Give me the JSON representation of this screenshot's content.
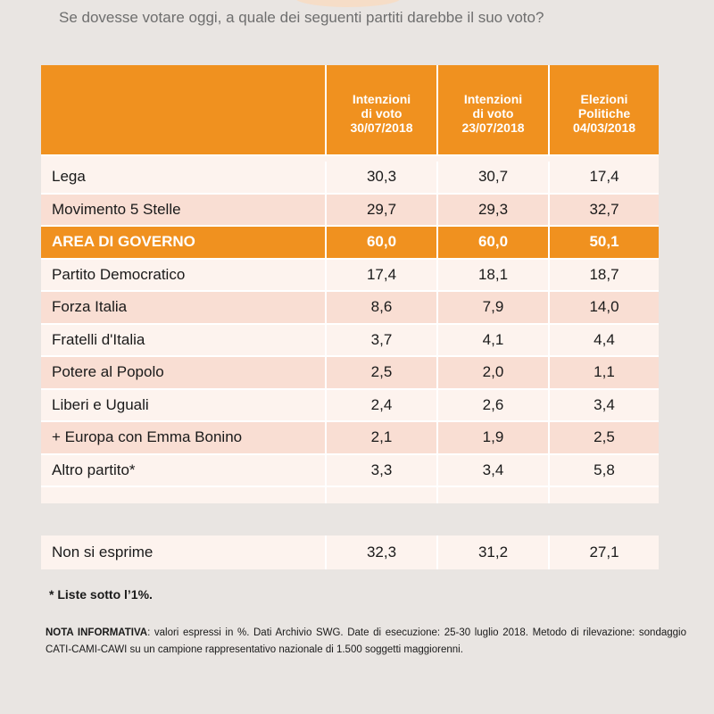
{
  "question": "Se dovesse votare oggi, a quale dei seguenti partiti darebbe il suo voto?",
  "colors": {
    "accent": "#f0911f",
    "row_light": "#fdf3ee",
    "row_dark": "#f9ded3"
  },
  "chart_data": {
    "type": "table",
    "columns": [
      {
        "line1": "Intenzioni",
        "line2": "di voto",
        "line3": "30/07/2018"
      },
      {
        "line1": "Intenzioni",
        "line2": "di voto",
        "line3": "23/07/2018"
      },
      {
        "line1": "Elezioni",
        "line2": "Politiche",
        "line3": "04/03/2018"
      }
    ],
    "rows": [
      {
        "label": "Lega",
        "values": [
          "30,3",
          "30,7",
          "17,4"
        ]
      },
      {
        "label": "Movimento 5 Stelle",
        "values": [
          "29,7",
          "29,3",
          "32,7"
        ]
      },
      {
        "label": "AREA DI GOVERNO",
        "values": [
          "60,0",
          "60,0",
          "50,1"
        ],
        "highlight": true
      },
      {
        "label": "Partito Democratico",
        "values": [
          "17,4",
          "18,1",
          "18,7"
        ]
      },
      {
        "label": "Forza Italia",
        "values": [
          "8,6",
          "7,9",
          "14,0"
        ]
      },
      {
        "label": "Fratelli d'Italia",
        "values": [
          "3,7",
          "4,1",
          "4,4"
        ]
      },
      {
        "label": "Potere al Popolo",
        "values": [
          "2,5",
          "2,0",
          "1,1"
        ]
      },
      {
        "label": "Liberi e Uguali",
        "values": [
          "2,4",
          "2,6",
          "3,4"
        ]
      },
      {
        "label": "+ Europa con Emma Bonino",
        "values": [
          "2,1",
          "1,9",
          "2,5"
        ]
      },
      {
        "label": "Altro partito*",
        "values": [
          "3,3",
          "3,4",
          "5,8"
        ]
      }
    ],
    "no_answer": {
      "label": "Non si esprime",
      "values": [
        "32,3",
        "31,2",
        "27,1"
      ]
    }
  },
  "footnote": "* Liste sotto l’1%.",
  "note": {
    "title": "NOTA INFORMATIVA",
    "text": ": valori espressi in %. Dati Archivio SWG. Date di esecuzione: 25-30 luglio 2018. Metodo di rilevazione: sondaggio CATI-CAMI-CAWI su un campione rappresentativo nazionale di 1.500 soggetti maggiorenni."
  }
}
